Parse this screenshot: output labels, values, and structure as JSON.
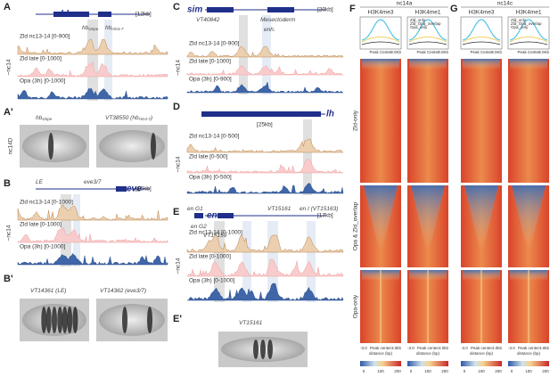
{
  "track_panels": [
    {
      "label": "A",
      "ylabel": "~nc14",
      "gene": "hb",
      "scale": "[12kb]",
      "elements": [
        {
          "base": "hb",
          "sub": "stripe"
        },
        {
          "base": "hb",
          "sub": "HG4-7"
        }
      ],
      "tracks": [
        "Zld nc13-14 [0-900]",
        "Zld late [0-1000]",
        "Opa (3h) [0-1000]"
      ]
    },
    {
      "label": "B",
      "ylabel": "~nc14",
      "gene": "eve",
      "scale": "[15kb]",
      "elements": [
        {
          "base": "LE"
        },
        {
          "base": "eve3/7"
        }
      ],
      "tracks": [
        "Zld nc13-14 [0-1000]",
        "Zld late [0-1000]",
        "Opa (3h) [0-1000]"
      ]
    },
    {
      "label": "C",
      "ylabel": "~nc14",
      "gene": "sim",
      "scale": "[20kb]",
      "elements": [
        {
          "base": "VT40842"
        },
        {
          "base": "Mesectoderm"
        },
        {
          "base": "enh."
        }
      ],
      "tracks": [
        "Zld nc13-14 [0-900]",
        "Zld late [0-1000]",
        "Opa (3h) [0-900]"
      ]
    },
    {
      "label": "D",
      "ylabel": "~nc14",
      "gene": "lh",
      "scale": "[25kb]",
      "elements": [],
      "tracks": [
        "Zld nc13-14 [0-500]",
        "Zld late [0-500]",
        "Opa (3h) [0-500]"
      ]
    },
    {
      "label": "E",
      "ylabel": "~nc14",
      "gene": "en",
      "scale": "[17kb]",
      "elements": [
        {
          "base": "en G1"
        },
        {
          "base": "en G2"
        },
        {
          "base": "VT15159"
        },
        {
          "base": "VT15161"
        },
        {
          "base": "en I (VT15163)"
        }
      ],
      "tracks": [
        "Zld nc13-14 [0-1000]",
        "Zld late [0-1000]",
        "Opa (3h) [0-1000]"
      ]
    }
  ],
  "image_panels": [
    {
      "label": "A'",
      "ylabel": "nc14D",
      "captions": [
        {
          "base": "hb",
          "sub": "stripe"
        },
        {
          "base": "VT38550 (hb",
          "sub": "HG4-7",
          "end": ")"
        }
      ]
    },
    {
      "label": "B'",
      "captions": [
        {
          "base": "VT14361 (LE)"
        },
        {
          "base": "VT14362 (eve3/7)"
        }
      ]
    },
    {
      "label": "E'",
      "captions": [
        {
          "base": "VT15161"
        }
      ]
    }
  ],
  "heatmap_panels": [
    {
      "label": "F",
      "stage": "nc14a"
    },
    {
      "label": "G",
      "stage": "nc14c"
    }
  ],
  "heatmap_common": {
    "columns": [
      "H3K4me3",
      "H3K4me1"
    ],
    "legend": [
      "Zld_only",
      "Zld_Opa_overlap",
      "Opa_only"
    ],
    "profile_axis": [
      "Peak Center",
      "3.0Kb"
    ],
    "rows": [
      "Zld-only",
      "Opa & Zld_overlap",
      "Opa-only"
    ],
    "bottom_axis": [
      "-3.0",
      "Peak center",
      "3.0kb"
    ],
    "distance": "distance (bp)",
    "colorbar": [
      0,
      100,
      200
    ]
  }
}
